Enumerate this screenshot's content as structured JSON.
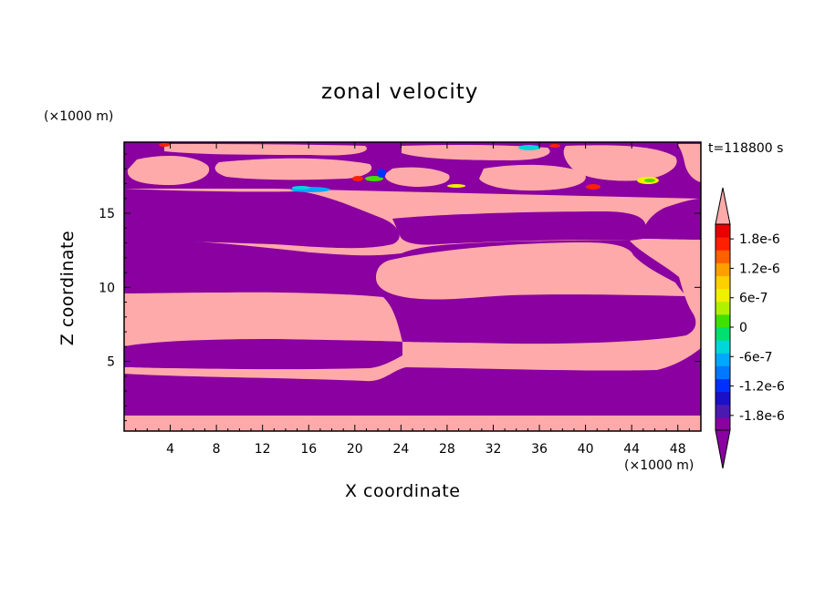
{
  "chart_data": {
    "type": "heatmap",
    "title": "zonal velocity",
    "time_label": "t=118800 s",
    "xlabel": "X coordinate",
    "ylabel": "Z coordinate",
    "x_unit_label": "(×1000 m)",
    "y_unit_label": "(×1000 m)",
    "xlim": [
      0,
      50
    ],
    "ylim": [
      0.3,
      19.8
    ],
    "x_ticks": [
      4,
      8,
      12,
      16,
      20,
      24,
      28,
      32,
      36,
      40,
      44,
      48
    ],
    "y_ticks": [
      5,
      10,
      15
    ],
    "colorbar": {
      "min": -2.1e-06,
      "max": 2.1e-06,
      "tick_values": [
        1.8e-06,
        1.2e-06,
        6e-07,
        0,
        -6e-07,
        -1.2e-06,
        -1.8e-06
      ],
      "tick_labels": [
        "1.8e-6",
        "1.2e-6",
        "6e-7",
        "0",
        "-6e-7",
        "-1.2e-6",
        "-1.8e-6"
      ],
      "colors": [
        "#8a00a0",
        "#4a1ab0",
        "#1a10c8",
        "#0030ff",
        "#0078ff",
        "#00a8ff",
        "#00d8d8",
        "#00e070",
        "#40e000",
        "#b0f000",
        "#f0f000",
        "#ffd000",
        "#ffa000",
        "#ff6000",
        "#ff2000",
        "#e80000"
      ],
      "under_color": "#8a00a0",
      "over_color": "#ffaaaa"
    },
    "positive_color": "#ffaaaa",
    "negative_color": "#8a00a0"
  }
}
